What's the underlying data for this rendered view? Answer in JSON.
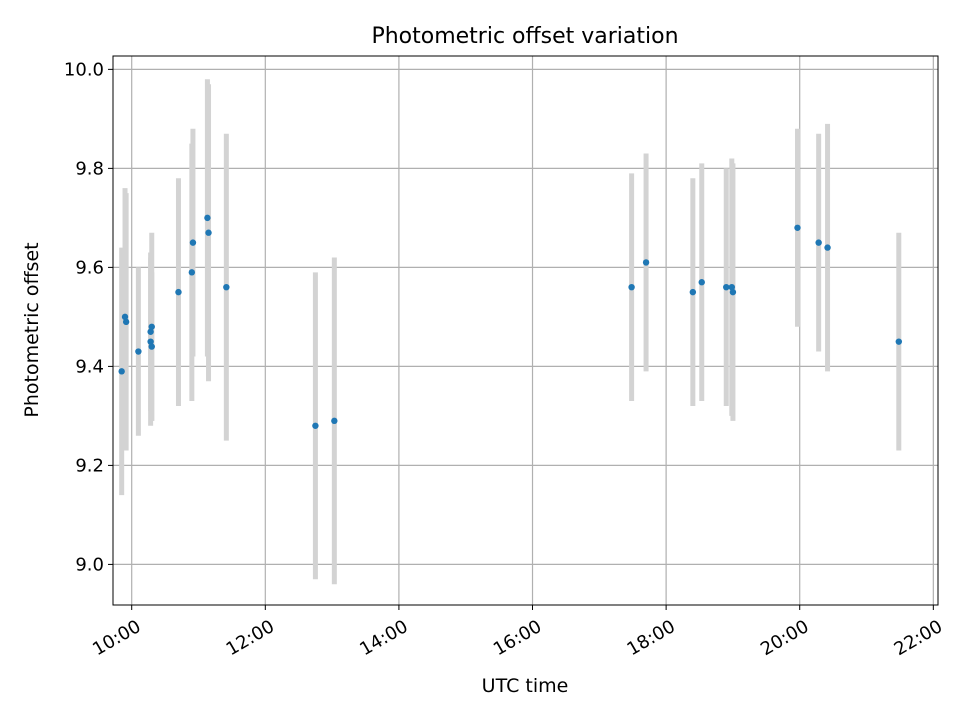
{
  "chart_data": {
    "type": "scatter",
    "title": "Photometric offset variation",
    "xlabel": "UTC time",
    "ylabel": "Photometric offset",
    "x_ticks": [
      "10:00",
      "12:00",
      "14:00",
      "16:00",
      "18:00",
      "20:00",
      "22:00"
    ],
    "x_tick_hours": [
      10,
      12,
      14,
      16,
      18,
      20,
      22
    ],
    "y_ticks": [
      "9.0",
      "9.2",
      "9.4",
      "9.6",
      "9.8",
      "10.0"
    ],
    "y_tick_values": [
      9.0,
      9.2,
      9.4,
      9.6,
      9.8,
      10.0
    ],
    "xlim_hours": [
      9.72,
      22.07
    ],
    "ylim": [
      8.918,
      10.027
    ],
    "grid": true,
    "legend": "none",
    "colors": {
      "points": "#1f77b4",
      "errorbars": "#d3d3d3",
      "grid": "#b0b0b0"
    },
    "series": [
      {
        "points": [
          {
            "x": "09:51",
            "y": 9.39,
            "err": 0.25
          },
          {
            "x": "09:54",
            "y": 9.5,
            "err": 0.26
          },
          {
            "x": "09:55",
            "y": 9.49,
            "err": 0.26
          },
          {
            "x": "10:06",
            "y": 9.43,
            "err": 0.17
          },
          {
            "x": "10:17",
            "y": 9.47,
            "err": 0.16
          },
          {
            "x": "10:17",
            "y": 9.45,
            "err": 0.17
          },
          {
            "x": "10:18",
            "y": 9.48,
            "err": 0.19
          },
          {
            "x": "10:18",
            "y": 9.44,
            "err": 0.15
          },
          {
            "x": "10:42",
            "y": 9.55,
            "err": 0.23
          },
          {
            "x": "10:54",
            "y": 9.59,
            "err": 0.26
          },
          {
            "x": "10:55",
            "y": 9.65,
            "err": 0.23
          },
          {
            "x": "11:08",
            "y": 9.7,
            "err": 0.28
          },
          {
            "x": "11:09",
            "y": 9.67,
            "err": 0.3
          },
          {
            "x": "11:25",
            "y": 9.56,
            "err": 0.31
          },
          {
            "x": "12:45",
            "y": 9.28,
            "err": 0.31
          },
          {
            "x": "13:02",
            "y": 9.29,
            "err": 0.33
          },
          {
            "x": "17:29",
            "y": 9.56,
            "err": 0.23
          },
          {
            "x": "17:42",
            "y": 9.61,
            "err": 0.22
          },
          {
            "x": "18:24",
            "y": 9.55,
            "err": 0.23
          },
          {
            "x": "18:32",
            "y": 9.57,
            "err": 0.24
          },
          {
            "x": "18:54",
            "y": 9.56,
            "err": 0.24
          },
          {
            "x": "18:59",
            "y": 9.56,
            "err": 0.26
          },
          {
            "x": "19:00",
            "y": 9.55,
            "err": 0.26
          },
          {
            "x": "19:58",
            "y": 9.68,
            "err": 0.2
          },
          {
            "x": "20:17",
            "y": 9.65,
            "err": 0.22
          },
          {
            "x": "20:25",
            "y": 9.64,
            "err": 0.25
          },
          {
            "x": "21:29",
            "y": 9.45,
            "err": 0.22
          }
        ]
      }
    ]
  }
}
